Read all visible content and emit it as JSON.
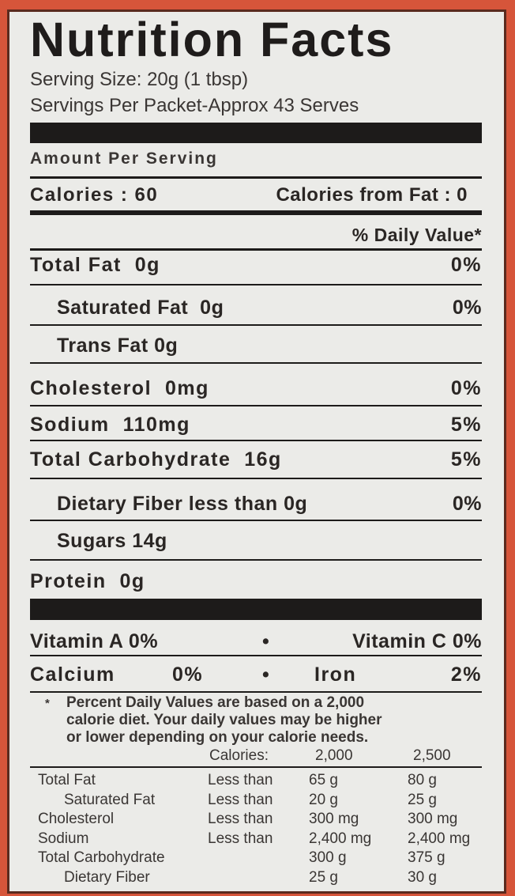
{
  "title": "Nutrition Facts",
  "serving_size": "Serving Size: 20g (1 tbsp)",
  "servings_per": "Servings Per Packet-Approx 43 Serves",
  "amount_per_serving": "Amount  Per Serving",
  "calories": "Calories : 60",
  "calories_from_fat": "Calories from Fat : 0",
  "daily_value_header": "% Daily Value*",
  "nutrients": [
    {
      "name": "Total Fat",
      "amount": "0g",
      "dv": "0%"
    },
    {
      "name": "Saturated Fat",
      "amount": "0g",
      "dv": "0%"
    },
    {
      "name": "Trans Fat",
      "amount": "0g",
      "dv": ""
    },
    {
      "name": "Cholesterol",
      "amount": "0mg",
      "dv": "0%"
    },
    {
      "name": "Sodium",
      "amount": "110mg",
      "dv": "5%"
    },
    {
      "name": "Total Carbohydrate",
      "amount": "16g",
      "dv": "5%"
    },
    {
      "name": "Dietary Fiber less than",
      "amount": "0g",
      "dv": "0%"
    },
    {
      "name": "Sugars",
      "amount": "14g",
      "dv": ""
    },
    {
      "name": "Protein",
      "amount": "0g",
      "dv": ""
    }
  ],
  "vitamins": [
    {
      "left": "Vitamin A 0%",
      "bullet": "•",
      "right": "Vitamin C 0%"
    },
    {
      "left": "Calcium",
      "left_value": "0%",
      "bullet": "•",
      "right": "Iron",
      "right_value": "2%"
    }
  ],
  "footnote": {
    "star": "*",
    "lines": [
      "Percent Daily Values are based on a 2,000",
      "calorie diet. Your daily values may be higher",
      "or lower depending on your calorie needs."
    ],
    "calories_label": "Calories:",
    "cal1": "2,000",
    "cal2": "2,500"
  },
  "reference_table": [
    [
      "Total Fat",
      "Less than",
      "65 g",
      "80 g"
    ],
    [
      "Saturated Fat",
      "Less than",
      "20 g",
      "25 g"
    ],
    [
      "Cholesterol",
      "Less than",
      "300 mg",
      "300 mg"
    ],
    [
      "Sodium",
      "Less than",
      "2,400 mg",
      "2,400 mg"
    ],
    [
      "Total Carbohydrate",
      "",
      "300 g",
      "375 g"
    ],
    [
      "Dietary Fiber",
      "",
      "25 g",
      "30 g"
    ]
  ],
  "colors": {
    "background": "#d6553a",
    "panel": "#ebebe8",
    "ink": "#1d1b1a"
  }
}
